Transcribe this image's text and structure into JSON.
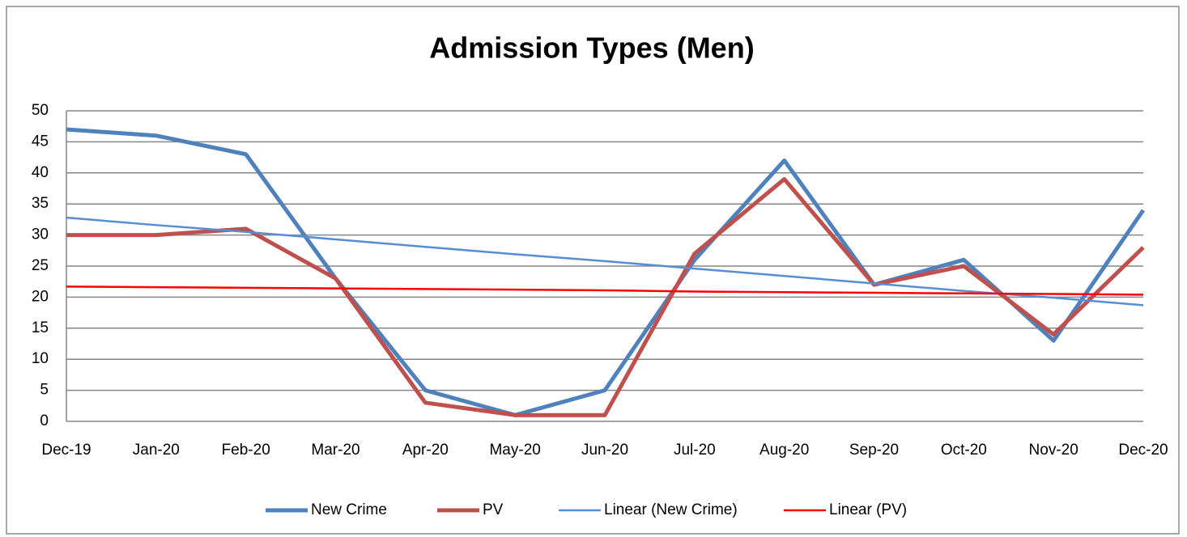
{
  "chart_data": {
    "type": "line",
    "title": "Admission Types (Men)",
    "categories": [
      "Dec-19",
      "Jan-20",
      "Feb-20",
      "Mar-20",
      "Apr-20",
      "May-20",
      "Jun-20",
      "Jul-20",
      "Aug-20",
      "Sep-20",
      "Oct-20",
      "Nov-20",
      "Dec-20"
    ],
    "series": [
      {
        "name": "New Crime",
        "color": "#4f81bd",
        "width": 5,
        "values": [
          47,
          46,
          43,
          23,
          5,
          1,
          5,
          26,
          42,
          22,
          26,
          13,
          34
        ]
      },
      {
        "name": "PV",
        "color": "#c0504d",
        "width": 5,
        "values": [
          30,
          30,
          31,
          23,
          3,
          1,
          1,
          27,
          39,
          22,
          25,
          14,
          28
        ]
      },
      {
        "name": "Linear (New Crime)",
        "color": "#558ed5",
        "width": 2.5,
        "values": [
          32.8,
          31.6,
          30.5,
          29.3,
          28.1,
          26.9,
          25.8,
          24.6,
          23.4,
          22.2,
          21.0,
          19.9,
          18.7
        ]
      },
      {
        "name": "Linear (PV)",
        "color": "#ff0000",
        "width": 2.5,
        "values": [
          21.7,
          21.6,
          21.5,
          21.4,
          21.3,
          21.2,
          21.1,
          20.9,
          20.8,
          20.7,
          20.6,
          20.5,
          20.4
        ]
      }
    ],
    "ylim": [
      0,
      50
    ],
    "yticks": [
      0,
      5,
      10,
      15,
      20,
      25,
      30,
      35,
      40,
      45,
      50
    ],
    "grid": true,
    "legend": "bottom"
  }
}
